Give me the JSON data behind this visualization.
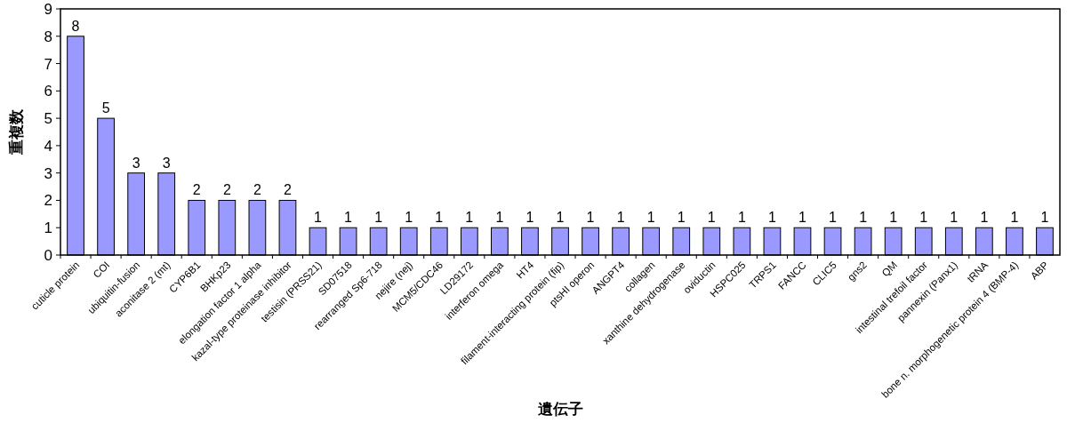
{
  "chart_data": {
    "type": "bar",
    "xlabel": "遺伝子",
    "ylabel": "重複数",
    "categories": [
      "cuticle protein",
      "COI",
      "ubiquitin-fusion",
      "aconitase 2 (mt)",
      "CYP6B1",
      "BHKp23",
      "elongation factor 1 alpha",
      "kazal-type proteinase inhibitor",
      "testisin (PRSS21)",
      "SD07518",
      "rearranged Sp6-718",
      "nejire (nej)",
      "MCM5/CDC46",
      "LD29172",
      "interferon omega",
      "HT4",
      "filament-interacting protein (fip)",
      "ptsHI operon",
      "ANGPT4",
      "collagen",
      "xanthine dehydrogenase",
      "oviductin",
      "HSPC025",
      "TRPS1",
      "FANCC",
      "CLIC5",
      "gns2",
      "QM",
      "intestinal trefoil factor",
      "pannexin (Panx1)",
      "tRNA",
      "bone n. morphogenetic protein 4 (BMP-4)",
      "ABP"
    ],
    "values": [
      8,
      5,
      3,
      3,
      2,
      2,
      2,
      2,
      1,
      1,
      1,
      1,
      1,
      1,
      1,
      1,
      1,
      1,
      1,
      1,
      1,
      1,
      1,
      1,
      1,
      1,
      1,
      1,
      1,
      1,
      1,
      1,
      1
    ],
    "color": "#9999ff",
    "ylim": [
      0,
      9
    ],
    "yticks": [
      0,
      1,
      2,
      3,
      4,
      5,
      6,
      7,
      8,
      9
    ],
    "data_labels": true
  }
}
